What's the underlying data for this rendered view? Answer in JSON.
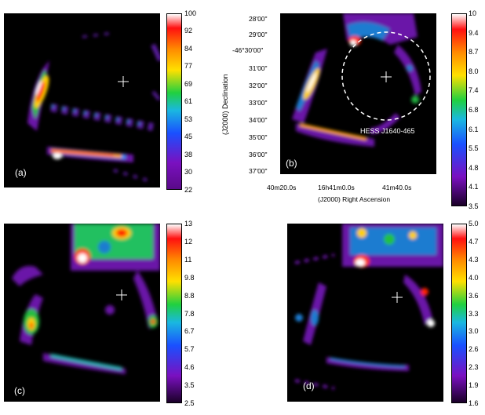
{
  "panels": [
    {
      "id": "a",
      "label": "(a)",
      "scale": [
        "100",
        "92",
        "84",
        "77",
        "69",
        "61",
        "53",
        "45",
        "38",
        "30",
        "22"
      ]
    },
    {
      "id": "b",
      "label": "(b)",
      "scale": [
        "10",
        "9.4",
        "8.7",
        "8.0",
        "7.4",
        "6.8",
        "6.1",
        "5.5",
        "4.8",
        "4.1",
        "3.5"
      ],
      "source_label": "HESS J1640-465",
      "ra_ticks": [
        "40m20.0s",
        "16h41m0.0s",
        "41m40.0s"
      ],
      "dec_ticks": [
        "28'00\"",
        "29'00\"",
        "-46°30'00\"",
        "31'00\"",
        "32'00\"",
        "33'00\"",
        "34'00\"",
        "35'00\"",
        "36'00\"",
        "37'00\""
      ],
      "xlabel": "(J2000) Right Ascension",
      "ylabel": "(J2000) Declination"
    },
    {
      "id": "c",
      "label": "(c)",
      "scale": [
        "13",
        "12",
        "11",
        "9.8",
        "8.8",
        "7.8",
        "6.7",
        "5.7",
        "4.6",
        "3.5",
        "2.5"
      ]
    },
    {
      "id": "d",
      "label": "(d)",
      "scale": [
        "5.0",
        "4.7",
        "4.3",
        "4.0",
        "3.6",
        "3.3",
        "3.0",
        "2.6",
        "2.3",
        "1.9",
        "1.6"
      ]
    }
  ]
}
